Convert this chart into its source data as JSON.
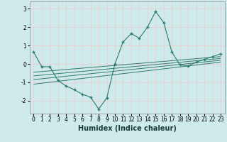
{
  "title": "",
  "xlabel": "Humidex (Indice chaleur)",
  "ylabel": "",
  "bg_color": "#ceeaea",
  "line_color": "#2e7b6e",
  "grid_color": "#f0c8c8",
  "xlim": [
    -0.5,
    23.5
  ],
  "ylim": [
    -2.7,
    3.4
  ],
  "yticks": [
    -2,
    -1,
    0,
    1,
    2,
    3
  ],
  "xticks": [
    0,
    1,
    2,
    3,
    4,
    5,
    6,
    7,
    8,
    9,
    10,
    11,
    12,
    13,
    14,
    15,
    16,
    17,
    18,
    19,
    20,
    21,
    22,
    23
  ],
  "data_x": [
    0,
    1,
    2,
    3,
    4,
    5,
    6,
    7,
    8,
    9,
    10,
    11,
    12,
    13,
    14,
    15,
    16,
    17,
    18,
    19,
    20,
    21,
    22,
    23
  ],
  "data_y": [
    0.65,
    -0.15,
    -0.15,
    -0.9,
    -1.2,
    -1.4,
    -1.65,
    -1.8,
    -2.45,
    -1.85,
    0.0,
    1.2,
    1.65,
    1.4,
    2.0,
    2.85,
    2.25,
    0.65,
    -0.05,
    -0.1,
    0.1,
    0.25,
    0.4,
    0.55
  ],
  "reg_lines": [
    {
      "x": [
        0,
        23
      ],
      "y": [
        -1.1,
        0.1
      ]
    },
    {
      "x": [
        0,
        23
      ],
      "y": [
        -0.85,
        0.2
      ]
    },
    {
      "x": [
        0,
        23
      ],
      "y": [
        -0.65,
        0.3
      ]
    },
    {
      "x": [
        0,
        23
      ],
      "y": [
        -0.45,
        0.4
      ]
    }
  ],
  "xlabel_fontsize": 7,
  "tick_fontsize": 5.5
}
